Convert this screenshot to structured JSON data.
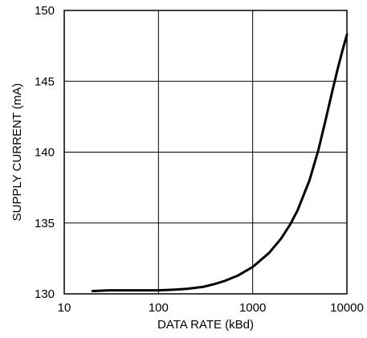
{
  "chart_data": {
    "type": "line",
    "title": "",
    "xlabel": "DATA RATE (kBd)",
    "ylabel": "SUPPLY CURRENT (mA)",
    "x_scale": "log",
    "xlim": [
      10,
      10000
    ],
    "ylim": [
      130,
      150
    ],
    "x_ticks": [
      10,
      100,
      1000,
      10000
    ],
    "x_tick_labels": [
      "10",
      "100",
      "1000",
      "10000"
    ],
    "y_ticks": [
      130,
      135,
      140,
      145,
      150
    ],
    "y_tick_labels": [
      "130",
      "135",
      "140",
      "145",
      "150"
    ],
    "grid": true,
    "series": [
      {
        "x": [
          20,
          30,
          50,
          100,
          150,
          200,
          300,
          400,
          500,
          700,
          1000,
          1500,
          2000,
          2500,
          3000,
          4000,
          5000,
          6000,
          7000,
          8000,
          9000,
          10000
        ],
        "y": [
          130.2,
          130.25,
          130.25,
          130.25,
          130.3,
          130.35,
          130.5,
          130.7,
          130.9,
          131.3,
          131.9,
          132.9,
          133.9,
          134.9,
          135.9,
          138.0,
          140.2,
          142.4,
          144.3,
          145.9,
          147.2,
          148.3
        ]
      }
    ]
  }
}
